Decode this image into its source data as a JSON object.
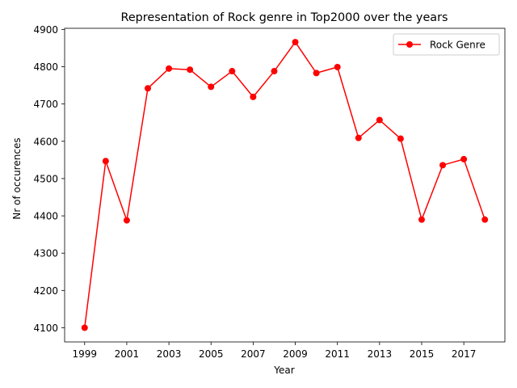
{
  "chart_data": {
    "type": "line",
    "title": "Representation of Rock genre in Top2000 over the years",
    "xlabel": "Year",
    "ylabel": "Nr of occurences",
    "xlim": [
      1998.05,
      2018.95
    ],
    "ylim": [
      4062,
      4903
    ],
    "xticks": [
      1999,
      2001,
      2003,
      2005,
      2007,
      2009,
      2011,
      2013,
      2015,
      2017
    ],
    "yticks": [
      4100,
      4200,
      4300,
      4400,
      4500,
      4600,
      4700,
      4800,
      4900
    ],
    "grid": false,
    "legend_position": "top-right",
    "series": [
      {
        "name": "Rock Genre",
        "color": "#ff0000",
        "marker": "circle",
        "x": [
          1999,
          2000,
          2001,
          2002,
          2003,
          2004,
          2005,
          2006,
          2007,
          2008,
          2009,
          2010,
          2011,
          2012,
          2013,
          2014,
          2015,
          2016,
          2017,
          2018
        ],
        "y": [
          4100,
          4547,
          4388,
          4742,
          4795,
          4792,
          4746,
          4788,
          4719,
          4788,
          4866,
          4783,
          4799,
          4609,
          4657,
          4607,
          4390,
          4536,
          4552,
          4390
        ]
      }
    ]
  }
}
